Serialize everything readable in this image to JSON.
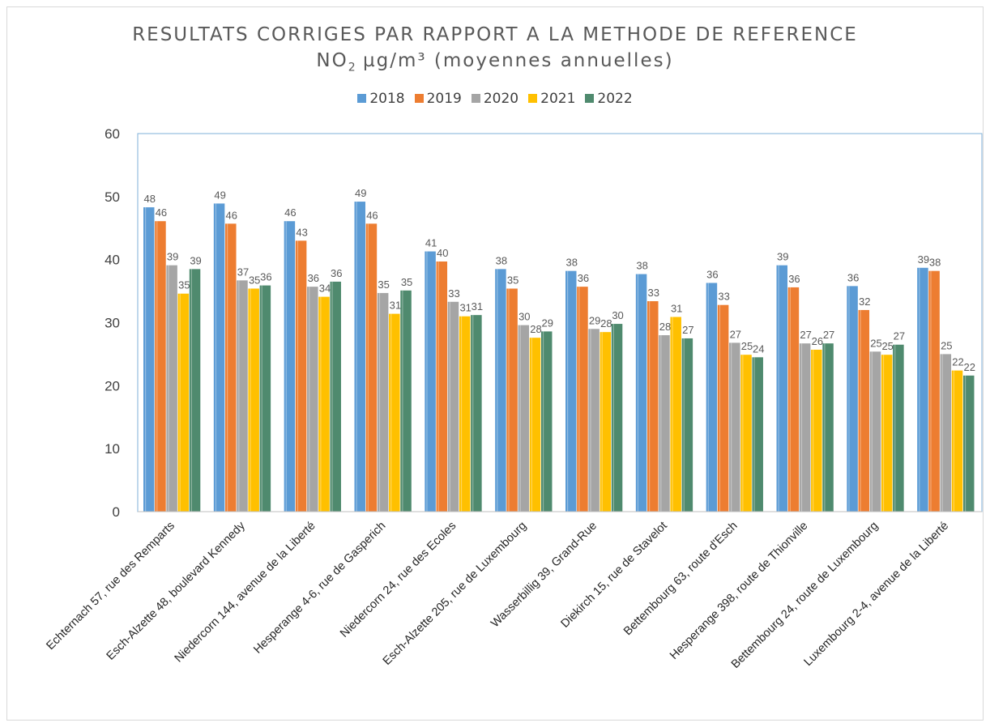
{
  "title_line1": "RESULTATS CORRIGES PAR RAPPORT A LA METHODE DE REFERENCE",
  "title_line2_pre": "NO",
  "title_line2_sub": "2",
  "title_line2_post": " µg/m³ (moyennes annuelles)",
  "chart_data": {
    "type": "bar",
    "title": "RESULTATS CORRIGES PAR RAPPORT A LA METHODE DE REFERENCE NO2 µg/m³ (moyennes annuelles)",
    "categories": [
      "Echternach 57, rue des Remparts",
      "Esch-Alzette 48, boulevard Kennedy",
      "Niedercorn 144, avenue de la Liberté",
      "Hesperange 4-6, rue de Gasperich",
      "Niedercorn 24, rue des Ecoles",
      "Esch-Alzette 205, rue de Luxembourg",
      "Wasserbillig 39, Grand-Rue",
      "Diekirch 15, rue de Stavelot",
      "Bettembourg 63, route d'Esch",
      "Hesperange 398, route de Thionville",
      "Bettembourg 24, route de Luxembourg",
      "Luxembourg 2-4, avenue de la Liberté"
    ],
    "series": [
      {
        "name": "2018",
        "color": "#5b9bd5",
        "values": [
          48.3,
          48.9,
          46.1,
          49.2,
          41.3,
          38.5,
          38.2,
          37.7,
          36.3,
          39.1,
          35.8,
          38.7
        ],
        "labels": [
          "48",
          "49",
          "46",
          "49",
          "41",
          "38",
          "38",
          "38",
          "36",
          "39",
          "36",
          "39"
        ]
      },
      {
        "name": "2019",
        "color": "#ed7d31",
        "values": [
          46.1,
          45.7,
          43.0,
          45.7,
          39.7,
          35.4,
          35.7,
          33.4,
          32.8,
          35.6,
          32.0,
          38.2
        ],
        "labels": [
          "46",
          "46",
          "43",
          "46",
          "40",
          "35",
          "36",
          "33",
          "33",
          "36",
          "32",
          "38"
        ]
      },
      {
        "name": "2020",
        "color": "#a5a5a5",
        "values": [
          39.1,
          36.7,
          35.7,
          34.7,
          33.3,
          29.6,
          29.0,
          28.0,
          26.8,
          26.7,
          25.4,
          25.0
        ],
        "labels": [
          "39",
          "37",
          "36",
          "35",
          "33",
          "30",
          "29",
          "28",
          "27",
          "27",
          "25",
          "25"
        ]
      },
      {
        "name": "2021",
        "color": "#ffc000",
        "values": [
          34.6,
          35.4,
          34.1,
          31.4,
          31.0,
          27.6,
          28.5,
          30.9,
          24.9,
          25.7,
          24.9,
          22.4
        ],
        "labels": [
          "35",
          "35",
          "34",
          "31",
          "31",
          "28",
          "28",
          "31",
          "25",
          "26",
          "25",
          "22"
        ]
      },
      {
        "name": "2022",
        "color": "#4f8a6e",
        "values": [
          38.5,
          35.9,
          36.5,
          35.1,
          31.2,
          28.6,
          29.8,
          27.5,
          24.5,
          26.7,
          26.5,
          21.6
        ],
        "labels": [
          "39",
          "36",
          "36",
          "35",
          "31",
          "29",
          "30",
          "27",
          "24",
          "27",
          "27",
          "22"
        ]
      }
    ],
    "ylim": [
      0,
      60
    ],
    "yticks": [
      0,
      10,
      20,
      30,
      40,
      50,
      60
    ],
    "xlabel": "",
    "ylabel": "",
    "legend_position": "top",
    "grid": false
  }
}
